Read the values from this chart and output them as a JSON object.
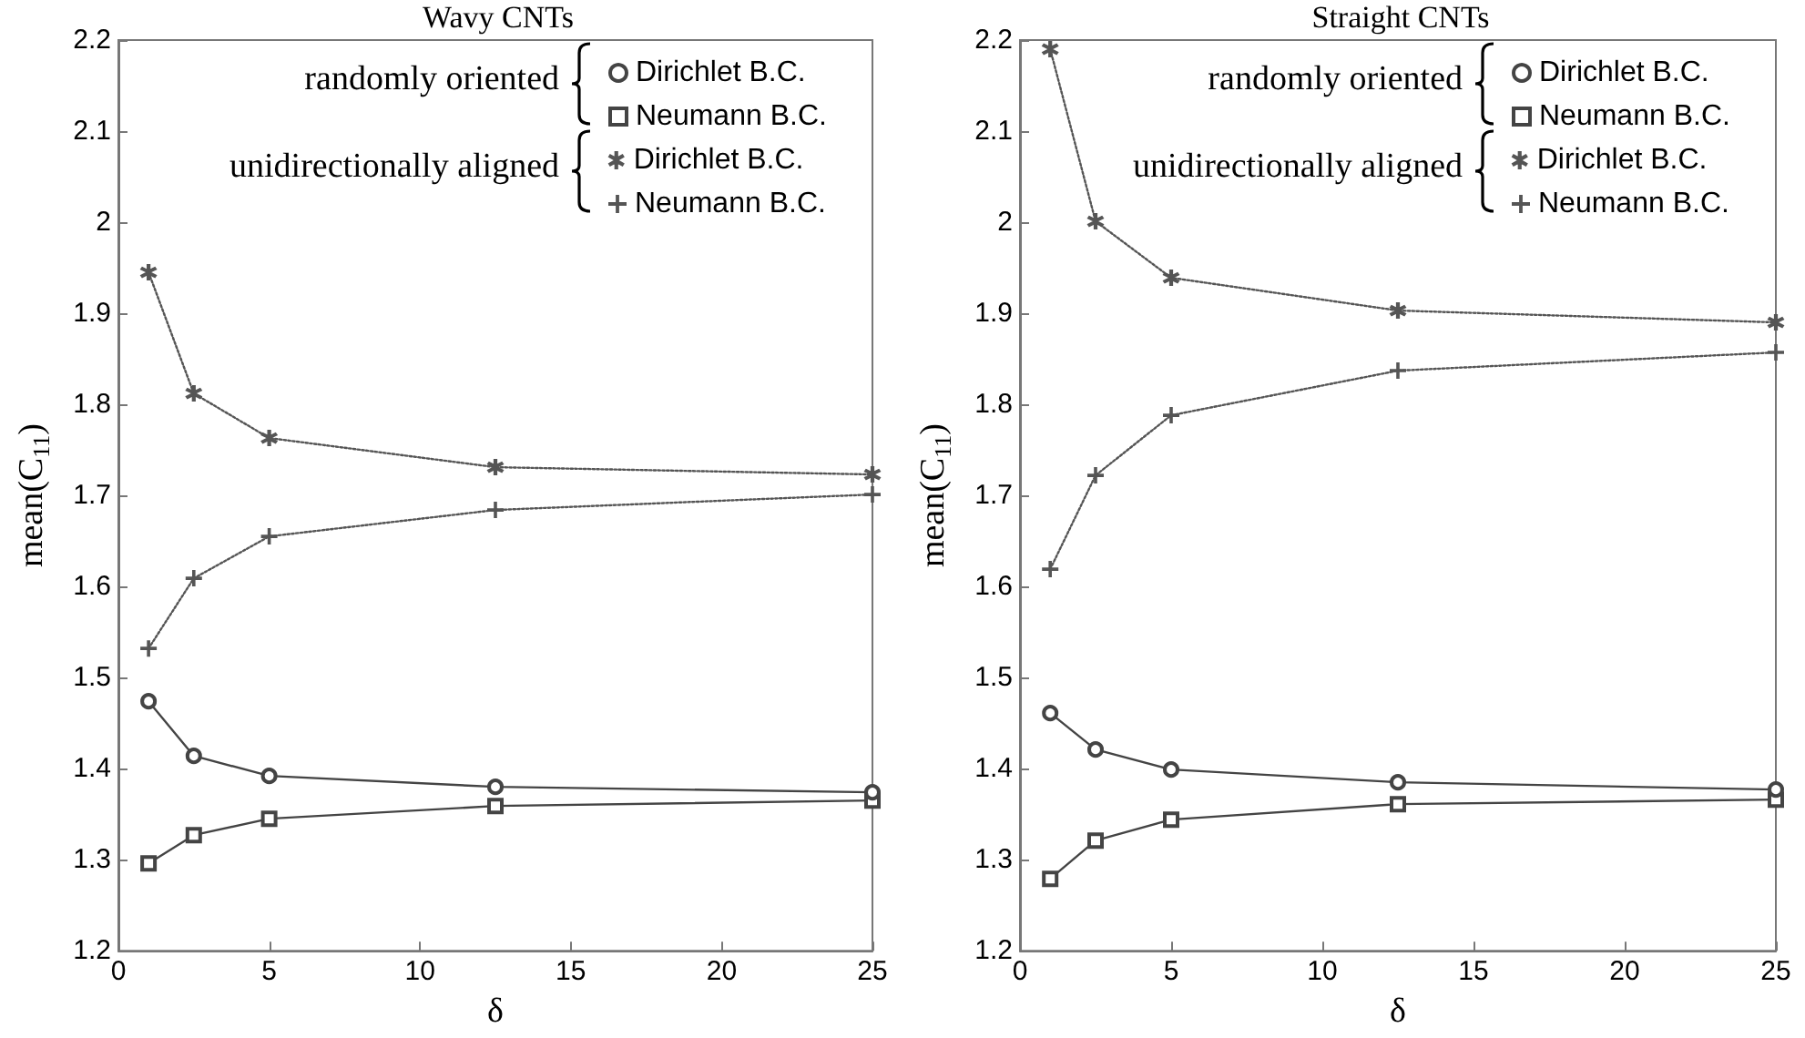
{
  "chart_data": [
    {
      "type": "line",
      "title": "Wavy CNTs",
      "xlabel": "δ",
      "ylabel": "mean(C$_{11}$)",
      "x": [
        1,
        2.5,
        5,
        12.5,
        25
      ],
      "xlim": [
        0,
        25
      ],
      "xticks": [
        0,
        5,
        10,
        15,
        20,
        25
      ],
      "ylim": [
        1.2,
        2.2
      ],
      "yticks": [
        1.2,
        1.3,
        1.4,
        1.5,
        1.6,
        1.7,
        1.8,
        1.9,
        2,
        2.1,
        2.2
      ],
      "grid": false,
      "legend": "top right",
      "annotations": [
        "randomly oriented",
        "unidirectionally aligned"
      ],
      "series": [
        {
          "name": "Dirichlet B.C.",
          "color": "#444444",
          "marker": "circle",
          "line_style": "solid",
          "values": [
            1.474,
            1.414,
            1.392,
            1.38,
            1.374
          ]
        },
        {
          "name": "Neumann B.C.",
          "color": "#444444",
          "marker": "square",
          "line_style": "solid",
          "values": [
            1.296,
            1.327,
            1.345,
            1.359,
            1.365
          ]
        },
        {
          "name": "Dirichlet B.C.",
          "color": "#555555",
          "marker": "star",
          "line_style": "dotted",
          "values": [
            1.945,
            1.812,
            1.763,
            1.731,
            1.723
          ]
        },
        {
          "name": "Neumann B.C.",
          "color": "#555555",
          "marker": "cross",
          "line_style": "dotted",
          "values": [
            1.532,
            1.609,
            1.655,
            1.684,
            1.701
          ]
        }
      ]
    },
    {
      "type": "line",
      "title": "Straight CNTs",
      "xlabel": "δ",
      "ylabel": "mean(C$_{11}$)",
      "x": [
        1,
        2.5,
        5,
        12.5,
        25
      ],
      "xlim": [
        0,
        25
      ],
      "xticks": [
        0,
        5,
        10,
        15,
        20,
        25
      ],
      "ylim": [
        1.2,
        2.2
      ],
      "yticks": [
        1.2,
        1.3,
        1.4,
        1.5,
        1.6,
        1.7,
        1.8,
        1.9,
        2,
        2.1,
        2.2
      ],
      "grid": false,
      "legend": "top right",
      "annotations": [
        "randomly oriented",
        "unidirectionally aligned"
      ],
      "series": [
        {
          "name": "Dirichlet B.C.",
          "color": "#444444",
          "marker": "circle",
          "line_style": "solid",
          "values": [
            1.461,
            1.421,
            1.399,
            1.385,
            1.377
          ]
        },
        {
          "name": "Neumann B.C.",
          "color": "#444444",
          "marker": "square",
          "line_style": "solid",
          "values": [
            1.279,
            1.321,
            1.344,
            1.361,
            1.366
          ]
        },
        {
          "name": "Dirichlet B.C.",
          "color": "#555555",
          "marker": "star",
          "line_style": "dotted",
          "values": [
            2.19,
            2.001,
            1.939,
            1.903,
            1.89
          ]
        },
        {
          "name": "Neumann B.C.",
          "color": "#555555",
          "marker": "cross",
          "line_style": "dotted",
          "values": [
            1.619,
            1.722,
            1.788,
            1.837,
            1.857
          ]
        }
      ]
    }
  ]
}
